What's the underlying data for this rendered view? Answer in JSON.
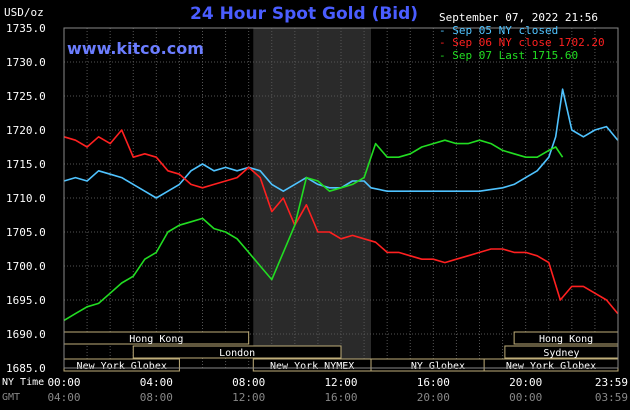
{
  "header": {
    "title": "24 Hour Spot Gold (Bid)",
    "site": "www.kitco.com",
    "unit": "USD/oz",
    "datetime": "September 07, 2022 21:56"
  },
  "legend": [
    {
      "label": "Sep 05 NY closed",
      "color": "#4fc3ff"
    },
    {
      "label": "Sep 06 NY close 1702.20",
      "color": "#ff2020"
    },
    {
      "label": "Sep 07 Last 1715.60",
      "color": "#22dd22"
    }
  ],
  "markets": [
    {
      "name": "Hong Kong",
      "start": 0,
      "end": 8
    },
    {
      "name": "London",
      "start": 3,
      "end": 12
    },
    {
      "name": "New York Globex",
      "start": 0,
      "end": 5
    },
    {
      "name": "New York NYMEX",
      "start": 8.2,
      "end": 13.3
    },
    {
      "name": "NY Globex",
      "start": 13.3,
      "end": 19.1
    },
    {
      "name": "Hong Kong",
      "start": 19.5,
      "end": 24
    },
    {
      "name": "Sydney",
      "start": 19.1,
      "end": 24
    },
    {
      "name": "New York Globex",
      "start": 18.2,
      "end": 24
    }
  ],
  "time_axis": {
    "ny_label": "NY Time",
    "gmt_label": "GMT",
    "ny_ticks": [
      "00:00",
      "04:00",
      "08:00",
      "12:00",
      "16:00",
      "20:00",
      "23:59"
    ],
    "gmt_ticks": [
      "04:00",
      "08:00",
      "12:00",
      "16:00",
      "20:00",
      "00:00",
      "03:59"
    ]
  },
  "chart_data": {
    "type": "line",
    "title": "24 Hour Spot Gold (Bid)",
    "ylabel": "USD/oz",
    "ylim": [
      1685,
      1735
    ],
    "yticks": [
      "1735.0",
      "1730.0",
      "1725.0",
      "1720.0",
      "1715.0",
      "1710.0",
      "1705.0",
      "1700.0",
      "1695.0",
      "1690.0",
      "1685.0"
    ],
    "xlim": [
      0,
      24
    ],
    "shaded_period": [
      8.2,
      13.3
    ],
    "grid": true,
    "series": [
      {
        "name": "Sep 05 NY closed",
        "color": "#4fc3ff",
        "x": [
          0,
          0.5,
          1,
          1.5,
          2,
          2.5,
          3,
          3.5,
          4,
          4.5,
          5,
          5.5,
          6,
          6.5,
          7,
          7.5,
          8,
          8.5,
          9,
          9.5,
          10,
          10.5,
          11,
          11.5,
          12,
          12.5,
          13,
          13.3,
          14,
          15,
          16,
          17,
          18,
          19,
          19.5,
          20,
          20.5,
          21,
          21.3,
          21.6,
          22,
          22.5,
          23,
          23.5,
          23.99
        ],
        "y": [
          1712.5,
          1713,
          1712.5,
          1714,
          1713.5,
          1713,
          1712,
          1711,
          1710,
          1711,
          1712,
          1714,
          1715,
          1714,
          1714.5,
          1714,
          1714.5,
          1714,
          1712,
          1711,
          1712,
          1713,
          1712,
          1711.5,
          1711.5,
          1712.5,
          1712.5,
          1711.5,
          1711,
          1711,
          1711,
          1711,
          1711,
          1711.5,
          1712,
          1713,
          1714,
          1716,
          1719,
          1726,
          1720,
          1719,
          1720,
          1720.5,
          1718.5
        ]
      },
      {
        "name": "Sep 06 NY close 1702.20",
        "color": "#ff2020",
        "x": [
          0,
          0.5,
          1,
          1.5,
          2,
          2.5,
          3,
          3.5,
          4,
          4.5,
          5,
          5.5,
          6,
          6.5,
          7,
          7.5,
          8,
          8.5,
          9,
          9.5,
          10,
          10.5,
          11,
          11.5,
          12,
          12.5,
          13,
          13.5,
          14,
          14.5,
          15,
          15.5,
          16,
          16.5,
          17,
          17.5,
          18,
          18.5,
          19,
          19.5,
          20,
          20.5,
          21,
          21.5,
          22,
          22.5,
          23,
          23.5,
          23.99
        ],
        "y": [
          1719,
          1718.5,
          1717.5,
          1719,
          1718,
          1720,
          1716,
          1716.5,
          1716,
          1714,
          1713.5,
          1712,
          1711.5,
          1712,
          1712.5,
          1713,
          1714.5,
          1713,
          1708,
          1710,
          1706,
          1709,
          1705,
          1705,
          1704,
          1704.5,
          1704,
          1703.5,
          1702,
          1702,
          1701.5,
          1701,
          1701,
          1700.5,
          1701,
          1701.5,
          1702,
          1702.5,
          1702.5,
          1702,
          1702,
          1701.5,
          1700.5,
          1695,
          1697,
          1697,
          1696,
          1695,
          1693
        ]
      },
      {
        "name": "Sep 07 Last 1715.60",
        "color": "#22dd22",
        "x": [
          0,
          0.5,
          1,
          1.5,
          2,
          2.5,
          3,
          3.5,
          4,
          4.5,
          5,
          5.5,
          6,
          6.5,
          7,
          7.5,
          8,
          8.5,
          9,
          9.5,
          10,
          10.5,
          11,
          11.5,
          12,
          12.5,
          13,
          13.5,
          14,
          14.5,
          15,
          15.5,
          16,
          16.5,
          17,
          17.5,
          18,
          18.5,
          19,
          19.5,
          20,
          20.5,
          21,
          21.3,
          21.6
        ],
        "y": [
          1692,
          1693,
          1694,
          1694.5,
          1696,
          1697.5,
          1698.5,
          1701,
          1702,
          1705,
          1706,
          1706.5,
          1707,
          1705.5,
          1705,
          1704,
          1702,
          1700,
          1698,
          1702,
          1706,
          1713,
          1712.5,
          1711,
          1711.5,
          1712,
          1713,
          1718,
          1716,
          1716,
          1716.5,
          1717.5,
          1718,
          1718.5,
          1718,
          1718,
          1718.5,
          1718,
          1717,
          1716.5,
          1716,
          1716,
          1717,
          1717.5,
          1716
        ]
      }
    ]
  }
}
